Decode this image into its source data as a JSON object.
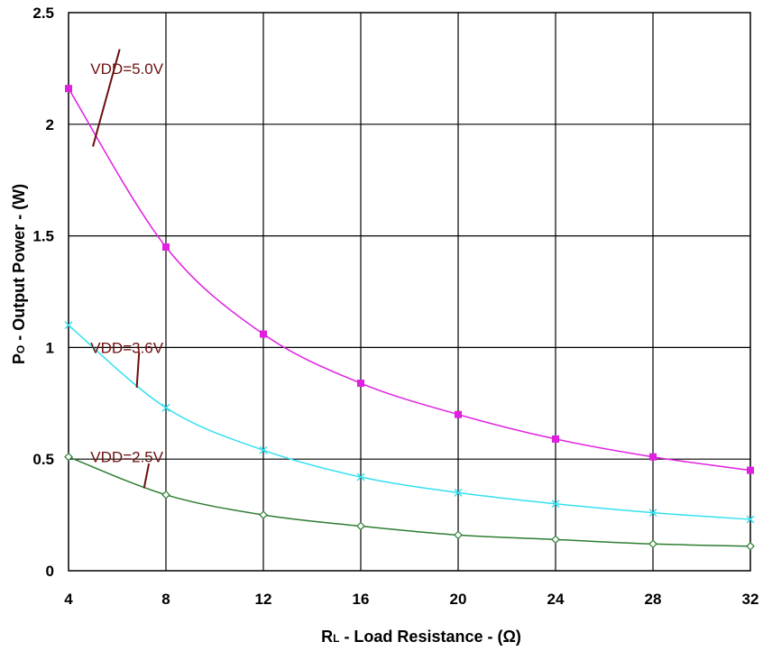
{
  "chart_data": {
    "type": "line",
    "x": [
      4,
      8,
      12,
      16,
      20,
      24,
      28,
      32
    ],
    "xlim": [
      4,
      32
    ],
    "ylim": [
      0,
      2.5
    ],
    "x_ticks": [
      "4",
      "8",
      "12",
      "16",
      "20",
      "24",
      "28",
      "32"
    ],
    "y_ticks": [
      "0",
      "0.5",
      "1",
      "1.5",
      "2",
      "2.5"
    ],
    "grid": true,
    "xlabel": {
      "main": "R",
      "sub": "L",
      "rest": " - Load Resistance - (Ω)"
    },
    "ylabel": {
      "main": "P",
      "sub": "O",
      "rest": " - Output Power - (W)"
    },
    "series": [
      {
        "name": "VDD=5.0V",
        "color": "#e020e0",
        "marker": "square",
        "values": [
          2.16,
          1.45,
          1.06,
          0.84,
          0.7,
          0.59,
          0.51,
          0.45
        ]
      },
      {
        "name": "VDD=3.6V",
        "color": "#33e0f0",
        "marker": "cross",
        "values": [
          1.1,
          0.73,
          0.54,
          0.42,
          0.35,
          0.3,
          0.26,
          0.23
        ]
      },
      {
        "name": "VDD=2.5V",
        "color": "#2e7d32",
        "marker": "diamond",
        "values": [
          0.51,
          0.34,
          0.25,
          0.2,
          0.16,
          0.14,
          0.12,
          0.11
        ]
      }
    ],
    "annotations": [
      {
        "text": "VDD=5.0V",
        "series": 0,
        "label_at": [
          4.9,
          2.25
        ],
        "point_at": [
          5.0,
          1.9
        ],
        "line_from": [
          6.1,
          1.9
        ]
      },
      {
        "text": "VDD=3.6V",
        "series": 1,
        "label_at": [
          4.9,
          1.0
        ],
        "point_at": [
          6.8,
          0.82
        ],
        "line_from": [
          6.9,
          0.98
        ]
      },
      {
        "text": "VDD=2.5V",
        "series": 2,
        "label_at": [
          4.9,
          0.51
        ],
        "point_at": [
          7.1,
          0.37
        ],
        "line_from": [
          7.3,
          0.48
        ]
      }
    ],
    "annotation_color": "#6b0f0f"
  }
}
